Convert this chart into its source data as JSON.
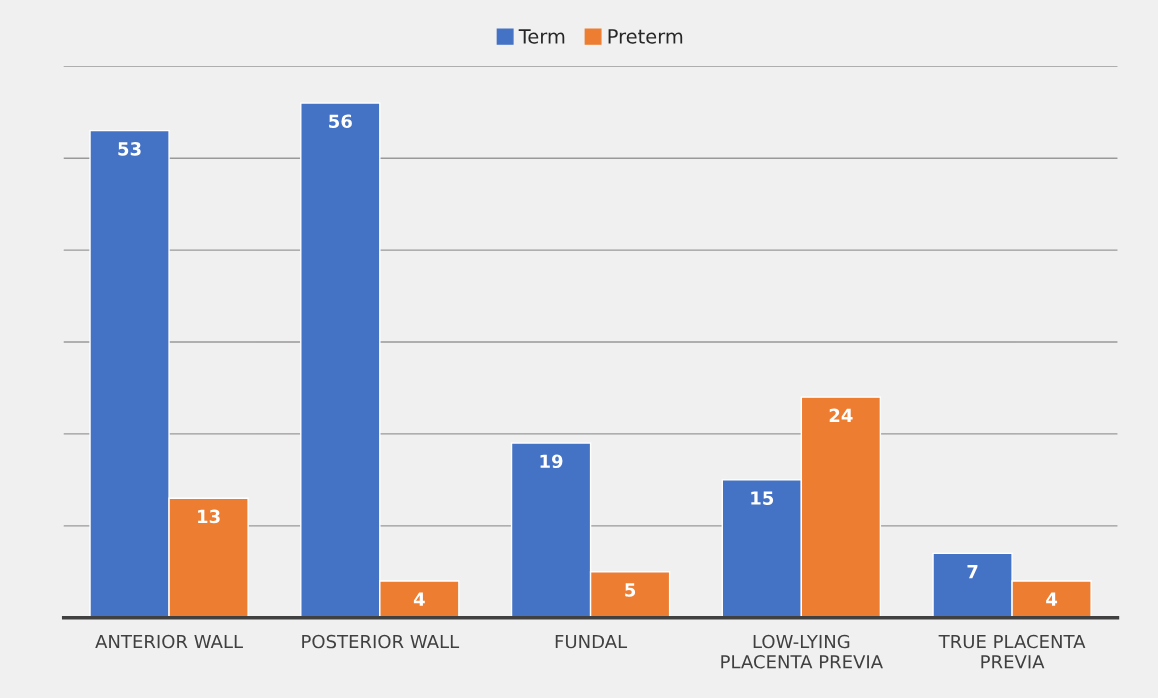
{
  "chart_data": {
    "type": "bar",
    "categories": [
      "ANTERIOR WALL",
      "POSTERIOR WALL",
      "FUNDAL",
      "LOW-LYING\nPLACENTA PREVIA",
      "TRUE PLACENTA\nPREVIA"
    ],
    "series": [
      {
        "name": "Term",
        "color": "#4472c4",
        "values": [
          53,
          56,
          19,
          15,
          7
        ]
      },
      {
        "name": "Preterm",
        "color": "#ed7d31",
        "values": [
          13,
          4,
          5,
          24,
          4
        ]
      }
    ],
    "ylim": [
      0,
      60
    ],
    "yticks": [
      {
        "value": 0,
        "label": null
      },
      {
        "value": 10,
        "label": null
      },
      {
        "value": 20,
        "label": null
      },
      {
        "value": 30,
        "label": null
      },
      {
        "value": 40,
        "label": null
      },
      {
        "value": 50,
        "label": null
      },
      {
        "value": 60,
        "label": null
      }
    ],
    "tick_labels": "x",
    "grid": "y",
    "legend": "top",
    "data_labels": true
  }
}
